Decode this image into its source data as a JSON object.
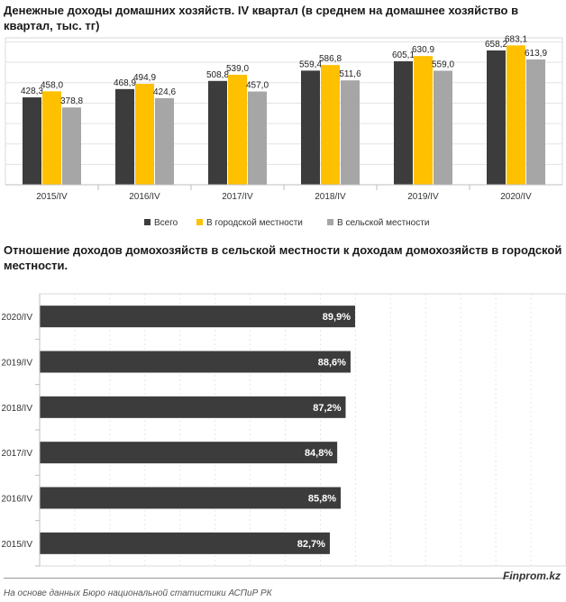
{
  "header": {
    "title1": "Денежные доходы домашних хозяйств. IV квартал (в среднем на домашнее хозяйство в квартал, тыс. тг)",
    "title2": "Отношение доходов домохозяйств в сельской местности к доходам домохозяйств в городской местности."
  },
  "footer": {
    "source": "На основе данных Бюро национальной статистики АСПиР РК",
    "brand": "Finprom.kz"
  },
  "colors": {
    "total": "#3c3c3c",
    "urban": "#ffc000",
    "rural": "#a6a6a6",
    "hbar": "#3c3c3c"
  },
  "chart_data": [
    {
      "type": "bar",
      "categories": [
        "2015/IV",
        "2016/IV",
        "2017/IV",
        "2018/IV",
        "2019/IV",
        "2020/IV"
      ],
      "series": [
        {
          "name": "Всего",
          "values": [
            428.3,
            468.9,
            508.8,
            559.4,
            605.1,
            658.2
          ],
          "labels": [
            "428,3",
            "468,9",
            "508,8",
            "559,4",
            "605,1",
            "658,2"
          ]
        },
        {
          "name": "В городской местности",
          "values": [
            458.0,
            494.9,
            539.0,
            586.8,
            630.9,
            683.1
          ],
          "labels": [
            "458,0",
            "494,9",
            "539,0",
            "586,8",
            "630,9",
            "683,1"
          ]
        },
        {
          "name": "В сельской местности",
          "values": [
            378.8,
            424.6,
            457.0,
            511.6,
            559.0,
            613.9
          ],
          "labels": [
            "378,8",
            "424,6",
            "457,0",
            "511,6",
            "559,0",
            "613,9"
          ]
        }
      ],
      "ylim": [
        0,
        720
      ],
      "grid": true,
      "legend": "bottom"
    },
    {
      "type": "bar",
      "orientation": "horizontal",
      "categories": [
        "2020/IV",
        "2019/IV",
        "2018/IV",
        "2017/IV",
        "2016/IV",
        "2015/IV"
      ],
      "values": [
        89.9,
        88.6,
        87.2,
        84.8,
        85.8,
        82.7
      ],
      "labels": [
        "89,9%",
        "88,6%",
        "87,2%",
        "84,8%",
        "85,8%",
        "82,7%"
      ],
      "xlim": [
        0,
        150
      ],
      "grid": true
    }
  ]
}
